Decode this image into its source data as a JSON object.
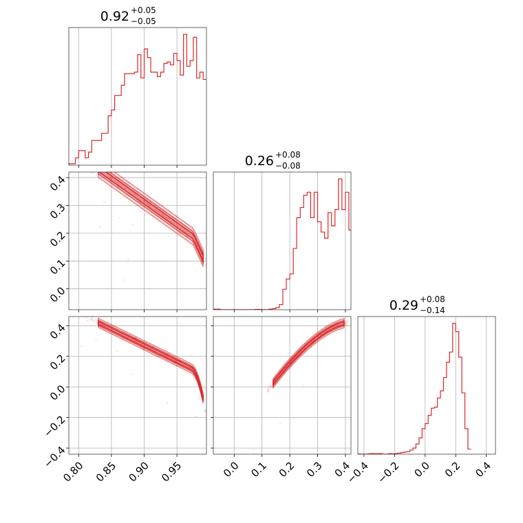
{
  "chart_data": {
    "type": "corner",
    "color": "#d62728",
    "grid": true,
    "parameters": [
      {
        "title": {
          "median": "0.92",
          "plus": "+0.05",
          "minus": "−0.05"
        },
        "range": [
          0.785,
          0.995
        ],
        "ticks": [
          {
            "value": 0.8,
            "label": "0.80"
          },
          {
            "value": 0.85,
            "label": "0.85"
          },
          {
            "value": 0.9,
            "label": "0.90"
          },
          {
            "value": 0.95,
            "label": "0.95"
          }
        ]
      },
      {
        "title": {
          "median": "0.26",
          "plus": "+0.08",
          "minus": "−0.08"
        },
        "range": [
          -0.075,
          0.42
        ],
        "ticks": [
          {
            "value": 0.0,
            "label": "0.0"
          },
          {
            "value": 0.1,
            "label": "0.1"
          },
          {
            "value": 0.2,
            "label": "0.2"
          },
          {
            "value": 0.3,
            "label": "0.3"
          },
          {
            "value": 0.4,
            "label": "0.4"
          }
        ]
      },
      {
        "title": {
          "median": "0.29",
          "plus": "+0.08",
          "minus": "−0.14"
        },
        "range": [
          -0.44,
          0.46
        ],
        "ticks": [
          {
            "value": -0.4,
            "label": "−0.4"
          },
          {
            "value": -0.2,
            "label": "−0.2"
          },
          {
            "value": 0.0,
            "label": "0.0"
          },
          {
            "value": 0.2,
            "label": "0.2"
          },
          {
            "value": 0.4,
            "label": "0.4"
          }
        ]
      }
    ],
    "histograms": [
      {
        "param": 0,
        "bin_start": 0.785,
        "bin_width": 0.005,
        "heights": [
          1,
          1,
          5,
          10,
          10,
          5,
          9,
          17,
          17,
          17,
          22,
          22,
          34,
          38,
          48,
          48,
          55,
          63,
          63,
          63,
          64,
          76,
          60,
          80,
          74,
          64,
          64,
          61,
          64,
          70,
          71,
          69,
          77,
          72,
          62,
          90,
          68,
          72,
          88,
          60,
          64,
          59
        ]
      },
      {
        "param": 1,
        "bin_start": -0.075,
        "bin_width": 0.0125,
        "heights": [
          0.5,
          0.5,
          0,
          0,
          0,
          0,
          0,
          0,
          0,
          0,
          0,
          0,
          0.3,
          0.3,
          0,
          0,
          0.5,
          1,
          2,
          5,
          20,
          30,
          35,
          60,
          90,
          100,
          112,
          115,
          90,
          115,
          86,
          76,
          70,
          95,
          82,
          98,
          128,
          98,
          115,
          78,
          68,
          40,
          15,
          10,
          5,
          4
        ]
      },
      {
        "param": 2,
        "bin_start": -0.44,
        "bin_width": 0.02,
        "heights": [
          0.2,
          0,
          0,
          0.3,
          0.5,
          0.5,
          0.5,
          0.5,
          0,
          0,
          0.4,
          0.3,
          0.6,
          1,
          1.5,
          2,
          2.5,
          4,
          6,
          10,
          16,
          25,
          30,
          38,
          45,
          46,
          55,
          62,
          75,
          90,
          100,
          128,
          120,
          95,
          60,
          25,
          5
        ]
      }
    ],
    "scatter_pairs": [
      {
        "x": 0,
        "y": 1,
        "relation": "y = 0.28 + (0.92 - x)*1.68, steepening near x=0.99"
      },
      {
        "x": 0,
        "y": 2,
        "relation": "decreasing, curving down near x=0.99"
      },
      {
        "x": 1,
        "y": 2,
        "relation": "increasing, concave"
      }
    ]
  }
}
